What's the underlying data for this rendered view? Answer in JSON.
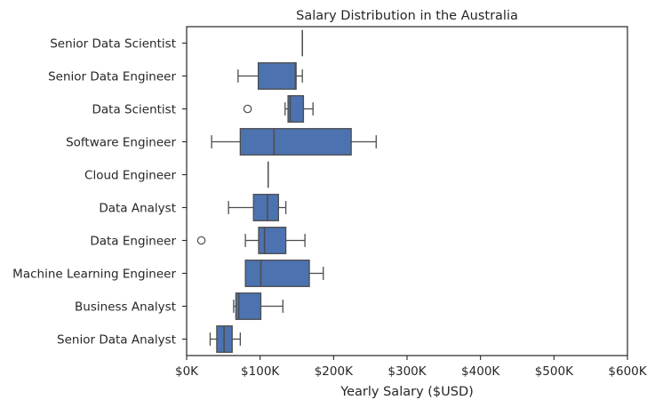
{
  "chart_data": {
    "type": "boxplot",
    "title": "Salary Distribution in the Australia",
    "xlabel": "Yearly Salary ($USD)",
    "ylabel": "",
    "xlim": [
      0,
      600000
    ],
    "xticks": [
      0,
      100000,
      200000,
      300000,
      400000,
      500000,
      600000
    ],
    "xtick_labels": [
      "$0K",
      "$100K",
      "$200K",
      "$300K",
      "$400K",
      "$500K",
      "$600K"
    ],
    "orientation": "horizontal",
    "grid": false,
    "box_color": "#4c72b0",
    "line_color": "#4d4d4d",
    "categories": [
      "Senior Data Scientist",
      "Senior Data Engineer",
      "Data Scientist",
      "Software Engineer",
      "Cloud Engineer",
      "Data Analyst",
      "Data Engineer",
      "Machine Learning Engineer",
      "Business Analyst",
      "Senior Data Analyst"
    ],
    "boxes": [
      {
        "whislo": 157500,
        "q1": 157500,
        "med": 157500,
        "q3": 157500,
        "whishi": 157500,
        "fliers": []
      },
      {
        "whislo": 70000,
        "q1": 97500,
        "med": 148000,
        "q3": 149000,
        "whishi": 157500,
        "fliers": []
      },
      {
        "whislo": 134000,
        "q1": 138000,
        "med": 141000,
        "q3": 159000,
        "whishi": 172000,
        "fliers": [
          83000
        ]
      },
      {
        "whislo": 34000,
        "q1": 73000,
        "med": 119000,
        "q3": 224000,
        "whishi": 258000,
        "fliers": []
      },
      {
        "whislo": 111000,
        "q1": 111000,
        "med": 111000,
        "q3": 111000,
        "whishi": 111000,
        "fliers": []
      },
      {
        "whislo": 57000,
        "q1": 91000,
        "med": 110000,
        "q3": 125000,
        "whishi": 135000,
        "fliers": []
      },
      {
        "whislo": 80000,
        "q1": 98000,
        "med": 106000,
        "q3": 135000,
        "whishi": 161000,
        "fliers": [
          20000
        ]
      },
      {
        "whislo": 80000,
        "q1": 80000,
        "med": 101000,
        "q3": 167000,
        "whishi": 186000,
        "fliers": []
      },
      {
        "whislo": 64000,
        "q1": 67000,
        "med": 71000,
        "q3": 101000,
        "whishi": 131000,
        "fliers": []
      },
      {
        "whislo": 32000,
        "q1": 41000,
        "med": 51000,
        "q3": 62000,
        "whishi": 73000,
        "fliers": []
      }
    ]
  }
}
